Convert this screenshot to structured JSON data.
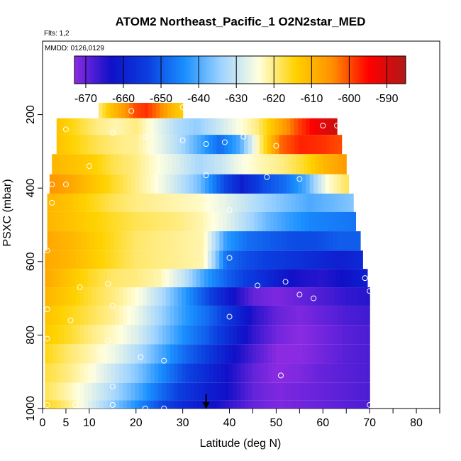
{
  "chart_data": {
    "type": "heatmap",
    "title": "ATOM2 Northeast_Pacific_1 O2N2star_MED",
    "flights_note": "Flts: 1,2",
    "dates_note": "MMDD: 0126,0129",
    "xlabel": "Latitude (deg N)",
    "ylabel": "PSXC (mbar)",
    "xlim": [
      0,
      85
    ],
    "ylim": [
      1000,
      0
    ],
    "x_ticks": [
      0,
      5,
      10,
      20,
      30,
      40,
      50,
      60,
      70,
      80
    ],
    "x_minor_ticks": [
      45,
      55,
      65,
      75,
      85
    ],
    "y_ticks": [
      200,
      400,
      600,
      800,
      1000
    ],
    "colorbar": {
      "ticks": [
        -670,
        -660,
        -650,
        -640,
        -630,
        -620,
        -610,
        -600,
        -590
      ],
      "range": [
        -673,
        -585
      ],
      "colors": [
        "#8a2be2",
        "#1010c8",
        "#0b3fe0",
        "#1a90ff",
        "#a0d4ff",
        "#ffffe0",
        "#ffd200",
        "#ff9000",
        "#ff0000",
        "#b01818"
      ]
    },
    "rows": [
      {
        "p": 190,
        "lat": [
          12,
          30
        ],
        "v": [
          -620,
          -612,
          -607,
          -600,
          -598,
          -603,
          -610,
          -614
        ]
      },
      {
        "p": 230,
        "lat": [
          3,
          63
        ],
        "v": [
          -612,
          -616,
          -620,
          -622,
          -620,
          -626,
          -632,
          -635,
          -630,
          -625,
          -620,
          -610,
          -600,
          -593,
          -588
        ]
      },
      {
        "p": 280,
        "lat": [
          3,
          64
        ],
        "v": [
          -612,
          -615,
          -618,
          -620,
          -621,
          -626,
          -632,
          -640,
          -648,
          -640,
          -620,
          -602,
          -597,
          -598,
          -600
        ]
      },
      {
        "p": 335,
        "lat": [
          2,
          65
        ],
        "v": [
          -610,
          -612,
          -614,
          -618,
          -620,
          -624,
          -628,
          -633,
          -630,
          -625,
          -622,
          -620,
          -616,
          -610,
          -606
        ]
      },
      {
        "p": 390,
        "lat": [
          1.5,
          65.5
        ],
        "v": [
          -605,
          -608,
          -612,
          -616,
          -620,
          -624,
          -630,
          -637,
          -650,
          -660,
          -652,
          -648,
          -640,
          -624,
          -618
        ]
      },
      {
        "p": 440,
        "lat": [
          1,
          66.5
        ],
        "v": [
          -610,
          -612,
          -615,
          -618,
          -620,
          -621,
          -622,
          -623,
          -626,
          -630,
          -634,
          -637,
          -640,
          -638,
          -636
        ]
      },
      {
        "p": 490,
        "lat": [
          1,
          67
        ],
        "v": [
          -610,
          -612,
          -614,
          -616,
          -618,
          -619,
          -620,
          -622,
          -626,
          -632,
          -638,
          -642,
          -645,
          -646,
          -647
        ]
      },
      {
        "p": 545,
        "lat": [
          1,
          68
        ],
        "v": [
          -608,
          -610,
          -613,
          -616,
          -619,
          -620,
          -621,
          -622,
          -642,
          -648,
          -650,
          -652,
          -652,
          -650,
          -650
        ]
      },
      {
        "p": 595,
        "lat": [
          0.5,
          68.5
        ],
        "v": [
          -608,
          -610,
          -613,
          -616,
          -619,
          -620,
          -621,
          -622,
          -648,
          -652,
          -654,
          -656,
          -658,
          -660,
          -658
        ]
      },
      {
        "p": 645,
        "lat": [
          0.5,
          69.5
        ],
        "v": [
          -608,
          -612,
          -616,
          -619,
          -620,
          -622,
          -630,
          -642,
          -650,
          -655,
          -660,
          -664,
          -665,
          -663,
          -660
        ]
      },
      {
        "p": 695,
        "lat": [
          0.5,
          70
        ],
        "v": [
          -610,
          -613,
          -617,
          -620,
          -624,
          -632,
          -642,
          -652,
          -662,
          -670,
          -672,
          -670,
          -668,
          -666,
          -665
        ]
      },
      {
        "p": 745,
        "lat": [
          0.5,
          70
        ],
        "v": [
          -612,
          -615,
          -618,
          -621,
          -626,
          -634,
          -642,
          -648,
          -656,
          -665,
          -670,
          -672,
          -670,
          -668,
          -667
        ]
      },
      {
        "p": 800,
        "lat": [
          0.5,
          70
        ],
        "v": [
          -613,
          -616,
          -620,
          -623,
          -628,
          -636,
          -644,
          -650,
          -658,
          -666,
          -671,
          -673,
          -671,
          -669,
          -668
        ]
      },
      {
        "p": 850,
        "lat": [
          0.5,
          70
        ],
        "v": [
          -615,
          -619,
          -622,
          -626,
          -632,
          -640,
          -648,
          -654,
          -662,
          -668,
          -673,
          -673,
          -671,
          -669,
          -668
        ]
      },
      {
        "p": 905,
        "lat": [
          0.5,
          70
        ],
        "v": [
          -617,
          -620,
          -624,
          -630,
          -636,
          -644,
          -652,
          -658,
          -664,
          -670,
          -673,
          -672,
          -670,
          -669,
          -668
        ]
      },
      {
        "p": 955,
        "lat": [
          0.5,
          70
        ],
        "v": [
          -618,
          -622,
          -627,
          -633,
          -640,
          -648,
          -655,
          -660,
          -664,
          -670,
          -672,
          -671,
          -670,
          -669,
          -668
        ]
      },
      {
        "p": 1000,
        "lat": [
          0.5,
          70
        ],
        "v": [
          -615,
          -620,
          -628,
          -636,
          -644,
          -652,
          -658,
          -662,
          -666,
          -670,
          -672,
          -671,
          -670,
          -669,
          -668
        ]
      }
    ],
    "points": [
      [
        19,
        190
      ],
      [
        30,
        180
      ],
      [
        2,
        240
      ],
      [
        5,
        240
      ],
      [
        15,
        250
      ],
      [
        22,
        260
      ],
      [
        30,
        270
      ],
      [
        35,
        280
      ],
      [
        39,
        275
      ],
      [
        43,
        260
      ],
      [
        50,
        285
      ],
      [
        60,
        230
      ],
      [
        63,
        230
      ],
      [
        10,
        340
      ],
      [
        35,
        365
      ],
      [
        2,
        390
      ],
      [
        5,
        390
      ],
      [
        48,
        370
      ],
      [
        55,
        375
      ],
      [
        2,
        440
      ],
      [
        40,
        460
      ],
      [
        1,
        570
      ],
      [
        40,
        590
      ],
      [
        14,
        660
      ],
      [
        8,
        670
      ],
      [
        52,
        655
      ],
      [
        55,
        690
      ],
      [
        58,
        700
      ],
      [
        69,
        645
      ],
      [
        70,
        680
      ],
      [
        46,
        665
      ],
      [
        15,
        720
      ],
      [
        1,
        730
      ],
      [
        6,
        760
      ],
      [
        40,
        750
      ],
      [
        1,
        810
      ],
      [
        14,
        815
      ],
      [
        21,
        860
      ],
      [
        26,
        870
      ],
      [
        51,
        910
      ],
      [
        15,
        940
      ],
      [
        1,
        990
      ],
      [
        7,
        990
      ],
      [
        15,
        990
      ],
      [
        22,
        1000
      ],
      [
        26,
        1000
      ],
      [
        47,
        1010
      ],
      [
        70,
        990
      ]
    ],
    "arrow": {
      "lat": 35,
      "p": 1000
    }
  }
}
